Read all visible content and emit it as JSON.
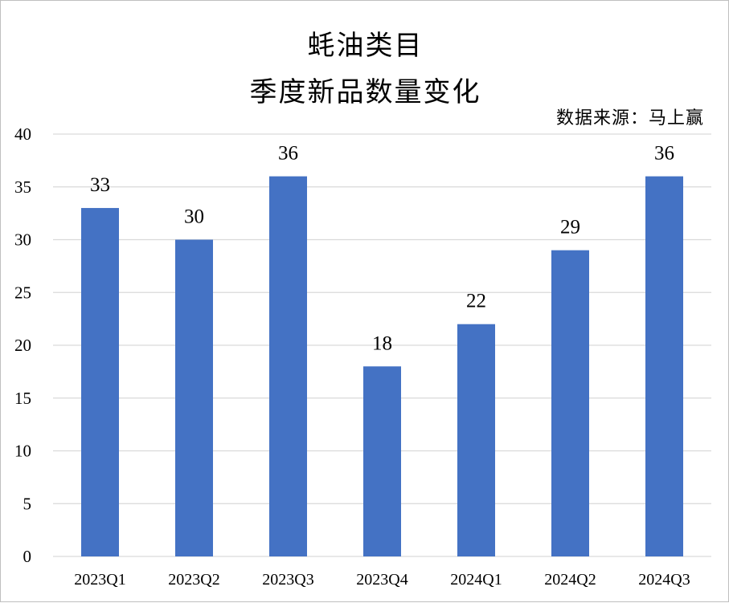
{
  "chart_data": {
    "type": "bar",
    "title": "蚝油类目",
    "subtitle": "季度新品数量变化",
    "source": "数据来源：马上赢",
    "categories": [
      "2023Q1",
      "2023Q2",
      "2023Q3",
      "2023Q4",
      "2024Q1",
      "2024Q2",
      "2024Q3"
    ],
    "values": [
      33,
      30,
      36,
      18,
      22,
      29,
      36
    ],
    "ylim": [
      0,
      40
    ],
    "yticks": [
      0,
      5,
      10,
      15,
      20,
      25,
      30,
      35,
      40
    ],
    "grid": true,
    "bar_color": "#4472C4",
    "grid_color": "#d9d9d9"
  }
}
